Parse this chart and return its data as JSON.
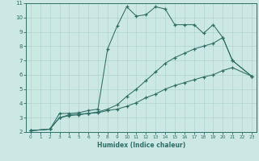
{
  "xlabel": "Humidex (Indice chaleur)",
  "xlim": [
    -0.5,
    23.5
  ],
  "ylim": [
    2,
    11
  ],
  "xticks": [
    0,
    1,
    2,
    3,
    4,
    5,
    6,
    7,
    8,
    9,
    10,
    11,
    12,
    13,
    14,
    15,
    16,
    17,
    18,
    19,
    20,
    21,
    22,
    23
  ],
  "yticks": [
    2,
    3,
    4,
    5,
    6,
    7,
    8,
    9,
    10,
    11
  ],
  "bg_color": "#cce8e4",
  "line_color": "#2d6e63",
  "grid_color": "#aed4cf",
  "line1_x": [
    0,
    2,
    3,
    4,
    5,
    6,
    7,
    8,
    9,
    10,
    11,
    12,
    13,
    14,
    15,
    16,
    17,
    18,
    19,
    20,
    21,
    23
  ],
  "line1_y": [
    2.1,
    2.2,
    3.3,
    3.3,
    3.35,
    3.5,
    3.6,
    7.8,
    9.4,
    10.75,
    10.1,
    10.2,
    10.75,
    10.6,
    9.5,
    9.5,
    9.5,
    8.9,
    9.5,
    8.6,
    7.0,
    5.9
  ],
  "line2_x": [
    0,
    2,
    3,
    4,
    5,
    6,
    7,
    8,
    9,
    10,
    11,
    12,
    13,
    14,
    15,
    16,
    17,
    18,
    19,
    20,
    21,
    23
  ],
  "line2_y": [
    2.1,
    2.2,
    3.0,
    3.2,
    3.25,
    3.3,
    3.4,
    3.6,
    3.9,
    4.5,
    5.0,
    5.6,
    6.2,
    6.8,
    7.2,
    7.5,
    7.8,
    8.0,
    8.2,
    8.6,
    7.0,
    5.9
  ],
  "line3_x": [
    0,
    2,
    3,
    4,
    5,
    6,
    7,
    8,
    9,
    10,
    11,
    12,
    13,
    14,
    15,
    16,
    17,
    18,
    19,
    20,
    21,
    23
  ],
  "line3_y": [
    2.1,
    2.2,
    3.0,
    3.15,
    3.2,
    3.3,
    3.35,
    3.5,
    3.6,
    3.8,
    4.05,
    4.4,
    4.65,
    5.0,
    5.25,
    5.45,
    5.65,
    5.85,
    6.0,
    6.3,
    6.5,
    5.9
  ]
}
